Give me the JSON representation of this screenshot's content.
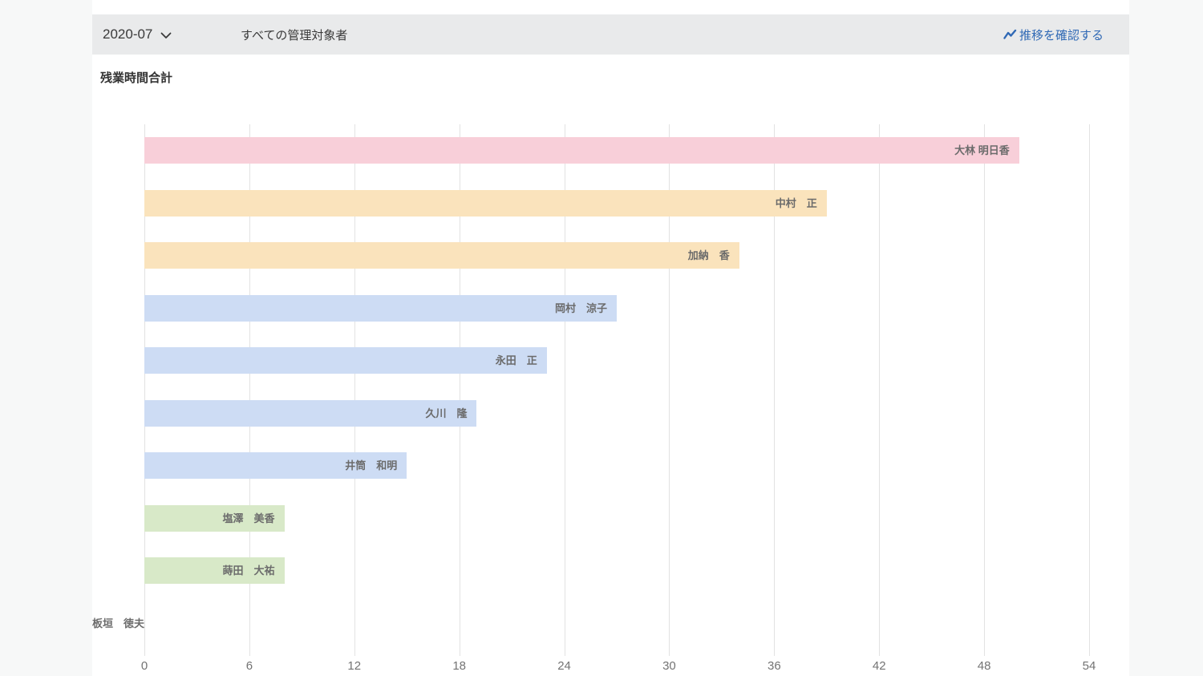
{
  "header": {
    "period": "2020-07",
    "scope": "すべての管理対象者",
    "trend_link_label": "推移を確認する"
  },
  "chart_title": "残業時間合計",
  "colors": {
    "accent_link": "#3069b5",
    "header_background": "#e9eaeb",
    "panel_background": "#ffffff",
    "page_background": "#f7f8f8",
    "gridline": "#e2e2e2",
    "bar_pink": "#f8cfd9",
    "bar_orange": "#fae3bc",
    "bar_blue": "#cddcf4",
    "bar_green": "#d8e9c8"
  },
  "chart_data": {
    "type": "bar",
    "orientation": "horizontal",
    "title": "残業時間合計",
    "categories": [
      "大林 明日香",
      "中村　正",
      "加納　香",
      "岡村　涼子",
      "永田　正",
      "久川　隆",
      "井筒　和明",
      "塩澤　美香",
      "蒔田　大祐",
      "板垣　徳夫"
    ],
    "values": [
      50,
      39,
      34,
      27,
      23,
      19,
      15,
      8,
      8,
      0
    ],
    "bar_colors": [
      "#f8cfd9",
      "#fae3bc",
      "#fae3bc",
      "#cddcf4",
      "#cddcf4",
      "#cddcf4",
      "#cddcf4",
      "#d8e9c8",
      "#d8e9c8",
      "#d8e9c8"
    ],
    "xlabel": "",
    "ylabel": "",
    "xlim": [
      0,
      54
    ],
    "x_ticks": [
      0,
      6,
      12,
      18,
      24,
      30,
      36,
      42,
      48,
      54
    ],
    "grid": "vertical",
    "legend": "none"
  }
}
